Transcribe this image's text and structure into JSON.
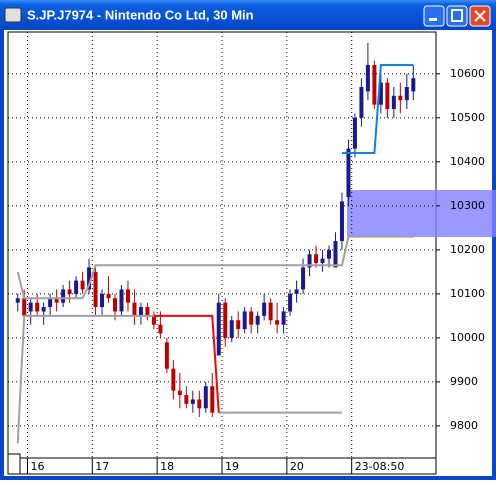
{
  "chart_data": {
    "type": "candlestick",
    "title": "S.JP.J7974 - Nintendo Co Ltd, 30 Min",
    "up_color": "#1a1a8c",
    "down_color": "#c00000",
    "grid": true,
    "ylim": [
      9727,
      10695
    ],
    "yticks": [
      9800,
      9900,
      10000,
      10100,
      10200,
      10300,
      10400,
      10500,
      10600
    ],
    "xlim": [
      -1.5,
      64.5
    ],
    "xticks": [
      {
        "value": 1.5,
        "label": "16"
      },
      {
        "value": 11.5,
        "label": "17"
      },
      {
        "value": 21.5,
        "label": "18"
      },
      {
        "value": 31.5,
        "label": "19"
      },
      {
        "value": 41.5,
        "label": "20"
      },
      {
        "value": 51.5,
        "label": "23-08:50"
      }
    ],
    "open": [
      10080,
      10090,
      10060,
      10080,
      10060,
      10070,
      10090,
      10080,
      10110,
      10100,
      10130,
      10110,
      10150,
      10070,
      10100,
      10090,
      10060,
      10110,
      10080,
      10050,
      10070,
      10050,
      10030,
      9990,
      9930,
      9880,
      9870,
      9850,
      9860,
      9840,
      9890,
      9960,
      10080,
      10000,
      10040,
      10020,
      10060,
      10030,
      10050,
      10080,
      10040,
      10030,
      10060,
      10100,
      10110,
      10160,
      10190,
      10170,
      10180,
      10160,
      10220,
      10320,
      10430,
      10500,
      10560,
      10620,
      10530,
      10580,
      10520,
      10550,
      10540,
      10560
    ],
    "high": [
      10100,
      10110,
      10090,
      10100,
      10080,
      10100,
      10110,
      10120,
      10130,
      10140,
      10150,
      10180,
      10160,
      10110,
      10140,
      10100,
      10120,
      10130,
      10110,
      10080,
      10080,
      10060,
      10060,
      10000,
      9950,
      9920,
      9890,
      9880,
      9880,
      9900,
      9920,
      10100,
      10090,
      10050,
      10060,
      10070,
      10070,
      10060,
      10100,
      10090,
      10080,
      10070,
      10110,
      10130,
      10180,
      10200,
      10210,
      10200,
      10210,
      10240,
      10330,
      10450,
      10510,
      10590,
      10670,
      10630,
      10600,
      10590,
      10570,
      10580,
      10600,
      10620
    ],
    "low": [
      10060,
      10040,
      10030,
      10050,
      10030,
      10050,
      10060,
      10070,
      10080,
      10090,
      10100,
      10100,
      10050,
      10050,
      10080,
      10040,
      10050,
      10060,
      10030,
      10030,
      10040,
      10020,
      10000,
      9920,
      9860,
      9840,
      9840,
      9830,
      9820,
      9830,
      9820,
      9960,
      9980,
      9990,
      10000,
      10010,
      10010,
      10010,
      10040,
      10030,
      10010,
      10010,
      10050,
      10080,
      10100,
      10140,
      10160,
      10150,
      10160,
      10160,
      10200,
      10300,
      10410,
      10480,
      10540,
      10520,
      10510,
      10500,
      10500,
      10510,
      10520,
      10540
    ],
    "close": [
      10090,
      10050,
      10080,
      10060,
      10070,
      10090,
      10080,
      10110,
      10100,
      10130,
      10110,
      10160,
      10070,
      10100,
      10090,
      10060,
      10110,
      10080,
      10050,
      10070,
      10050,
      10030,
      10010,
      9930,
      9880,
      9870,
      9850,
      9860,
      9840,
      9890,
      9830,
      10080,
      10000,
      10040,
      10020,
      10060,
      10030,
      10050,
      10080,
      10040,
      10030,
      10060,
      10100,
      10110,
      10160,
      10190,
      10170,
      10180,
      10200,
      10220,
      10310,
      10430,
      10500,
      10570,
      10620,
      10530,
      10580,
      10520,
      10550,
      10540,
      10570,
      10590
    ],
    "series": [
      {
        "color": "#a0a0a0",
        "values": [
          10150,
          10090,
          10090,
          10090,
          10090,
          10090,
          10090,
          10090,
          10090,
          10090,
          10090,
          10120,
          10165,
          10165,
          10165,
          10165,
          10165,
          10165,
          10165,
          10165,
          10165,
          10165,
          10165,
          10165,
          10165,
          10165,
          10165,
          10165,
          10165,
          10165,
          10165,
          10165,
          10165,
          10165,
          10165,
          10165,
          10165,
          10165,
          10165,
          10165,
          10165,
          10165,
          10165,
          10165,
          10165,
          10165,
          10165,
          10165,
          10165,
          10165,
          10165,
          10230,
          10230,
          10230,
          10230,
          10230,
          10230,
          10230,
          10230,
          10230,
          10230,
          10230
        ]
      },
      {
        "color": "#a0a0a0",
        "values": [
          9760,
          10050,
          10050,
          10050,
          10050,
          10050,
          10050,
          10050,
          10050,
          10050,
          10050,
          10050,
          10050,
          10050,
          10050,
          10050,
          10050,
          10050,
          10050,
          10050,
          10050,
          10050,
          null,
          null,
          null,
          null,
          null,
          null,
          null,
          null,
          null,
          9830,
          9830,
          9830,
          9830,
          9830,
          9830,
          9830,
          9830,
          9830,
          9830,
          9830,
          9830,
          9830,
          9830,
          9830,
          9830,
          9830,
          9830,
          9830,
          9830,
          null,
          null,
          null,
          null,
          null,
          null,
          null,
          null,
          null,
          null,
          null
        ]
      },
      {
        "color": "#ff0000",
        "values": [
          null,
          null,
          null,
          null,
          null,
          null,
          null,
          null,
          null,
          null,
          null,
          null,
          null,
          null,
          null,
          null,
          null,
          null,
          null,
          null,
          null,
          10050,
          10050,
          10050,
          10050,
          10050,
          10050,
          10050,
          10050,
          10050,
          10050,
          9830,
          null,
          null,
          null,
          null,
          null,
          null,
          null,
          null,
          null,
          null,
          null,
          null,
          null,
          null,
          null,
          null,
          null,
          null,
          null,
          null,
          null,
          null,
          null,
          null,
          null,
          null,
          null,
          null,
          null,
          null
        ]
      },
      {
        "color": "#0a84e0",
        "values": [
          null,
          null,
          null,
          null,
          null,
          null,
          null,
          null,
          null,
          null,
          null,
          null,
          null,
          null,
          null,
          null,
          null,
          null,
          null,
          null,
          null,
          null,
          null,
          null,
          null,
          null,
          null,
          null,
          null,
          null,
          null,
          null,
          null,
          null,
          null,
          null,
          null,
          null,
          null,
          null,
          null,
          null,
          null,
          null,
          null,
          null,
          null,
          null,
          null,
          null,
          10420,
          10420,
          10420,
          10420,
          10420,
          10420,
          10620,
          10620,
          10620,
          10620,
          10620,
          10620
        ]
      }
    ]
  }
}
